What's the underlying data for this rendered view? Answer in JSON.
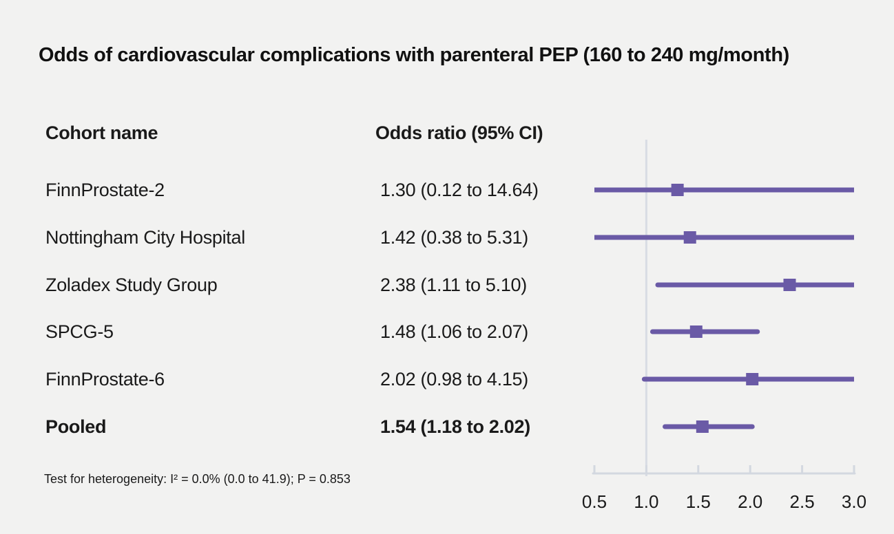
{
  "title": "Odds of cardiovascular complications with parenteral PEP (160 to 240 mg/month)",
  "columns": {
    "cohort": "Cohort name",
    "odds": "Odds ratio (95% CI)"
  },
  "footnote": "Test for heterogeneity: I² = 0.0% (0.0 to 41.9); P = 0.853",
  "colors": {
    "background": "#f2f2f1",
    "text": "#1a1a1a",
    "marker": "#6a5aa6",
    "axis": "#d3d8e0",
    "reference_line": "#d8dce4"
  },
  "chart_data": {
    "type": "forest",
    "title": "Odds of cardiovascular complications with parenteral PEP (160 to 240 mg/month)",
    "xlim": [
      0.5,
      3.0
    ],
    "reference_value": 1.0,
    "tick_values": [
      0.5,
      1.0,
      1.5,
      2.0,
      2.5,
      3.0
    ],
    "tick_labels": [
      "0.5",
      "1.0",
      "1.5",
      "2.0",
      "2.5",
      "3.0"
    ],
    "grid": false,
    "rows": [
      {
        "label": "FinnProstate-2",
        "or_text": "1.30 (0.12 to 14.64)",
        "estimate": 1.3,
        "ci_low": 0.12,
        "ci_high": 14.64,
        "bold": false
      },
      {
        "label": "Nottingham City Hospital",
        "or_text": "1.42 (0.38 to 5.31)",
        "estimate": 1.42,
        "ci_low": 0.38,
        "ci_high": 5.31,
        "bold": false
      },
      {
        "label": "Zoladex Study Group",
        "or_text": "2.38 (1.11 to 5.10)",
        "estimate": 2.38,
        "ci_low": 1.11,
        "ci_high": 5.1,
        "bold": false
      },
      {
        "label": "SPCG-5",
        "or_text": "1.48 (1.06 to 2.07)",
        "estimate": 1.48,
        "ci_low": 1.06,
        "ci_high": 2.07,
        "bold": false
      },
      {
        "label": "FinnProstate-6",
        "or_text": "2.02 (0.98 to 4.15)",
        "estimate": 2.02,
        "ci_low": 0.98,
        "ci_high": 4.15,
        "bold": false
      },
      {
        "label": "Pooled",
        "or_text": "1.54 (1.18 to 2.02)",
        "estimate": 1.54,
        "ci_low": 1.18,
        "ci_high": 2.02,
        "bold": true
      }
    ]
  }
}
